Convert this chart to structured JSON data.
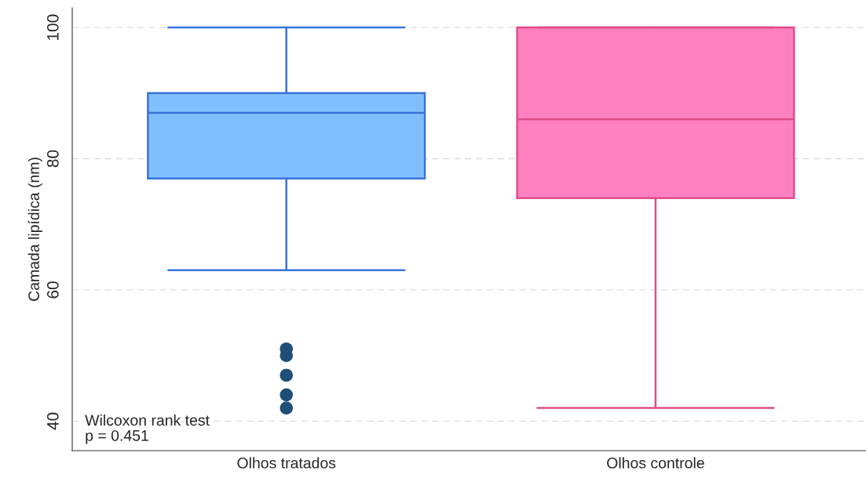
{
  "chart_data": {
    "type": "box",
    "ylabel": "Camada lipídica (nm)",
    "categories": [
      "Olhos tratados",
      "Olhos controle"
    ],
    "boxes": [
      {
        "low": 63,
        "q1": 77,
        "median": 87,
        "q3": 90,
        "high": 100,
        "outliers": [
          51,
          50,
          47,
          44,
          42
        ]
      },
      {
        "low": 42,
        "q1": 74,
        "median": 86,
        "q3": 100,
        "high": 100
      }
    ],
    "colors": [
      "#80bfff",
      "#ff80c0"
    ],
    "ylim": [
      35.5,
      103
    ],
    "yticks": [
      40,
      60,
      80,
      100
    ],
    "grid": "y",
    "annotations": [
      "Wilcoxon rank test\np = 0.451"
    ]
  }
}
